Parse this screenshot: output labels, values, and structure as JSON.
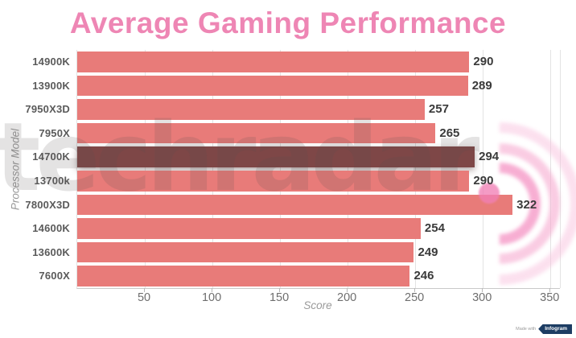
{
  "chart_data": {
    "type": "bar",
    "orientation": "horizontal",
    "title": "Average Gaming Performance",
    "xlabel": "Score",
    "ylabel": "Processor Model",
    "categories": [
      "14900K",
      "13900K",
      "7950X3D",
      "7950X",
      "14700K",
      "13700k",
      "7800X3D",
      "14600K",
      "13600K",
      "7600X"
    ],
    "values": [
      290,
      289,
      257,
      265,
      294,
      290,
      322,
      254,
      249,
      246
    ],
    "highlighted_category": "14700K",
    "highlight_index": 4,
    "xticks": [
      50,
      100,
      150,
      200,
      250,
      300,
      350
    ],
    "xlim": [
      0,
      357
    ],
    "grid": true,
    "value_labels": true,
    "legend": "none"
  },
  "colors": {
    "title": "#ee86b4",
    "bar": "#e87b79",
    "bar_highlighted": "#7e4747",
    "value_label": "#3a3a3a",
    "category_label": "#5a5a5a",
    "tick_label": "#6e6e6e",
    "axis_title": "#9a9a9a",
    "gridline": "#e3e3e3",
    "watermark_pink": "#f180b6",
    "badge_navy": "#1d3d63"
  },
  "watermark": {
    "text": "techradar",
    "icon": "radar-waves-icon"
  },
  "badge": {
    "prefix": "Made with",
    "label": "Infogram"
  }
}
